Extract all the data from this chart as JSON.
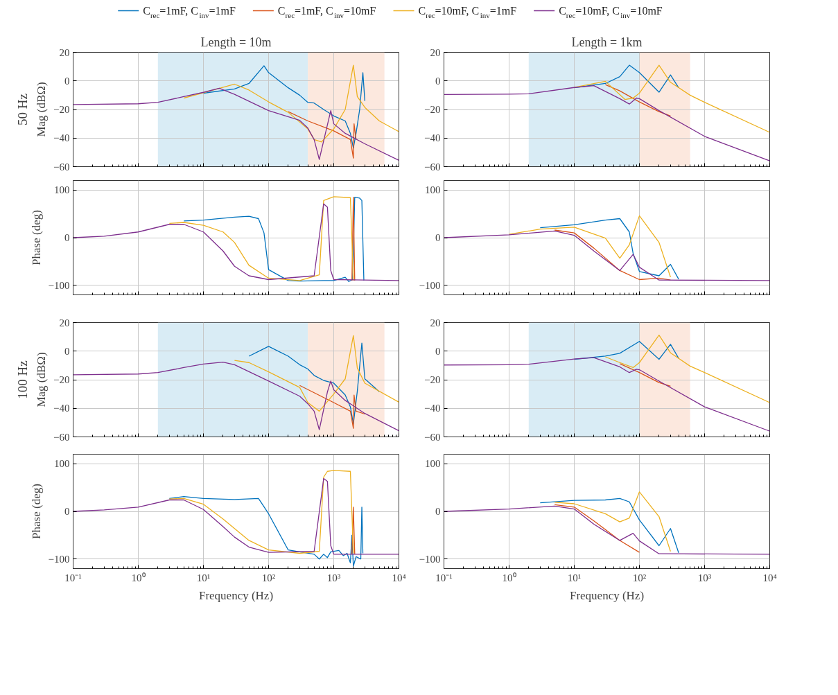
{
  "chart_data": [
    {
      "type": "line",
      "title": "Length = 10m",
      "ylabel": "Mag (dBΩ)",
      "annotations": [
        "50 Hz"
      ],
      "log": "x",
      "grid": true,
      "legend": "top",
      "tick_labels": "y",
      "xlim": [
        0.1,
        10000
      ],
      "xticks": [
        {
          "value": 0.1,
          "label": null
        },
        {
          "value": 1,
          "label": null
        },
        {
          "value": 10,
          "label": null
        },
        {
          "value": 100,
          "label": null
        },
        {
          "value": 1000,
          "label": null
        },
        {
          "value": 10000,
          "label": null
        }
      ],
      "ylim": [
        -60,
        20
      ],
      "yticks": [
        {
          "value": -60,
          "label": "−60"
        },
        {
          "value": -40,
          "label": "−40"
        },
        {
          "value": -20,
          "label": "−20"
        },
        0,
        20
      ],
      "bands": [
        {
          "axis": "x",
          "from": 2,
          "to": 400,
          "color": "#d9ecf5"
        },
        {
          "axis": "x",
          "from": 400,
          "to": 6000,
          "color": "#fce8de"
        }
      ],
      "series": [
        {
          "name": "C$_{rec}$=1mF, C$_{inv}$=1mF",
          "color": "#0072bd",
          "x": [
            10,
            30,
            50,
            85,
            100,
            200,
            300,
            400,
            500,
            700,
            1000,
            1500,
            1800,
            2000,
            2200,
            2500,
            2800,
            3000
          ],
          "values": [
            -8.6,
            -5.6,
            -1.8,
            10.6,
            5.8,
            -4.8,
            -10,
            -15,
            -15.5,
            -20,
            -24.5,
            -28,
            -36.7,
            -47,
            -36.7,
            -20,
            5.8,
            -14
          ]
        },
        {
          "name": "C$_{rec}$=1mF, C$_{inv}$=10mF",
          "color": "#d95319",
          "x": [
            200,
            400,
            1000,
            1800,
            2000,
            2050,
            2200
          ],
          "values": [
            -21.5,
            -28,
            -35,
            -41,
            -54,
            -30,
            -41
          ]
        },
        {
          "name": "C$_{rec}$=10mF, C$_{inv}$=1mF",
          "color": "#edb120",
          "x": [
            5,
            10,
            30,
            50,
            100,
            200,
            400,
            500,
            650,
            1000,
            1500,
            2000,
            2300,
            3000,
            5000,
            10000
          ],
          "values": [
            -12,
            -8.3,
            -2.3,
            -6.4,
            -14.7,
            -22,
            -33.6,
            -41,
            -42.7,
            -33.6,
            -20,
            11,
            -11,
            -18.5,
            -28,
            -35.5
          ]
        },
        {
          "name": "C$_{rec}$=10mF, C$_{inv}$=10mF",
          "color": "#7e2f8e",
          "x": [
            0.1,
            1,
            2,
            5,
            10,
            17.5,
            30,
            100,
            300,
            400,
            500,
            600,
            900,
            1000,
            1500,
            3000,
            10000
          ],
          "values": [
            -16.5,
            -16,
            -15,
            -11,
            -8,
            -5.2,
            -9.4,
            -20.8,
            -27.6,
            -33,
            -41,
            -55,
            -20.8,
            -30,
            -36.7,
            -44,
            -55.6
          ]
        }
      ]
    },
    {
      "type": "line",
      "title": "Length = 1km",
      "log": "x",
      "grid": true,
      "tick_labels": "y",
      "xlim": [
        0.1,
        10000
      ],
      "xticks": [
        {
          "value": 0.1,
          "label": null
        },
        {
          "value": 1,
          "label": null
        },
        {
          "value": 10,
          "label": null
        },
        {
          "value": 100,
          "label": null
        },
        {
          "value": 1000,
          "label": null
        },
        {
          "value": 10000,
          "label": null
        }
      ],
      "ylim": [
        -60,
        20
      ],
      "yticks": [
        {
          "value": -60,
          "label": "−60"
        },
        {
          "value": -40,
          "label": "−40"
        },
        {
          "value": -20,
          "label": "−20"
        },
        0,
        20
      ],
      "bands": [
        {
          "axis": "x",
          "from": 2,
          "to": 100,
          "color": "#d9ecf5"
        },
        {
          "axis": "x",
          "from": 100,
          "to": 600,
          "color": "#fce8de"
        }
      ],
      "series": [
        {
          "color": "#0072bd",
          "x": [
            10,
            30,
            50,
            70,
            100,
            200,
            300,
            400
          ],
          "values": [
            -4.8,
            -1.8,
            3,
            11,
            5.8,
            -7.9,
            4.2,
            -4.8
          ]
        },
        {
          "color": "#d95319",
          "x": [
            30,
            50,
            100,
            200,
            300
          ],
          "values": [
            -2.6,
            -7,
            -14.7,
            -21.5,
            -24.5
          ]
        },
        {
          "color": "#edb120",
          "x": [
            10,
            30,
            60,
            80,
            100,
            200,
            300,
            600,
            1000,
            10000
          ],
          "values": [
            -4.5,
            -0.3,
            -13,
            -12,
            -8.6,
            11,
            -1,
            -10,
            -15,
            -36
          ]
        },
        {
          "color": "#7e2f8e",
          "x": [
            0.1,
            1,
            2,
            10,
            20,
            50,
            70,
            90,
            100,
            200,
            1000,
            10000
          ],
          "values": [
            -9.5,
            -9.3,
            -9,
            -4.6,
            -3.3,
            -12.4,
            -16.2,
            -12,
            -12.4,
            -20.8,
            -38.8,
            -55.9
          ]
        }
      ]
    },
    {
      "type": "line",
      "ylabel": "Phase (deg)",
      "log": "x",
      "grid": true,
      "tick_labels": "y",
      "xlim": [
        0.1,
        10000
      ],
      "xticks": [
        {
          "value": 0.1,
          "label": null
        },
        {
          "value": 1,
          "label": null
        },
        {
          "value": 10,
          "label": null
        },
        {
          "value": 100,
          "label": null
        },
        {
          "value": 1000,
          "label": null
        },
        {
          "value": 10000,
          "label": null
        }
      ],
      "ylim": [
        -120,
        120
      ],
      "yticks": [
        {
          "value": -100,
          "label": "−100"
        },
        0,
        100
      ],
      "series": [
        {
          "color": "#0072bd",
          "x": [
            5,
            10,
            30,
            50,
            70,
            85,
            100,
            200,
            300,
            700,
            1000,
            1500,
            1700,
            1950,
            2100,
            2500,
            2700,
            2900
          ],
          "values": [
            35,
            37,
            43,
            45,
            40,
            10,
            -67,
            -90,
            -91,
            -90,
            -90,
            -83,
            -92,
            -88,
            85,
            83,
            78,
            -90
          ]
        },
        {
          "color": "#d95319",
          "x": [
            1900,
            2000,
            2100
          ],
          "values": [
            -90,
            85,
            -90
          ]
        },
        {
          "color": "#edb120",
          "x": [
            3,
            5,
            10,
            20,
            30,
            50,
            100,
            300,
            600,
            700,
            1000,
            1800,
            2000
          ],
          "values": [
            30,
            32,
            26,
            12,
            -10,
            -58,
            -85,
            -90,
            -78,
            78,
            86,
            84,
            -90
          ]
        },
        {
          "color": "#7e2f8e",
          "x": [
            0.1,
            0.3,
            1,
            3,
            5,
            10,
            20,
            30,
            50,
            100,
            500,
            700,
            800,
            900,
            1000,
            10000
          ],
          "values": [
            0,
            3,
            12,
            28,
            28,
            12,
            -28,
            -60,
            -80,
            -88,
            -80,
            71,
            64,
            -69,
            -88,
            -90
          ]
        }
      ]
    },
    {
      "type": "line",
      "log": "x",
      "grid": true,
      "tick_labels": "y",
      "xlim": [
        0.1,
        10000
      ],
      "xticks": [
        {
          "value": 0.1,
          "label": null
        },
        {
          "value": 1,
          "label": null
        },
        {
          "value": 10,
          "label": null
        },
        {
          "value": 100,
          "label": null
        },
        {
          "value": 1000,
          "label": null
        },
        {
          "value": 10000,
          "label": null
        }
      ],
      "ylim": [
        -120,
        120
      ],
      "yticks": [
        {
          "value": -100,
          "label": "−100"
        },
        0,
        100
      ],
      "series": [
        {
          "color": "#0072bd",
          "x": [
            3,
            10,
            30,
            50,
            70,
            80,
            100,
            200,
            300,
            400
          ],
          "values": [
            21,
            27,
            37,
            40,
            12,
            -33,
            -71,
            -80,
            -56,
            -87
          ]
        },
        {
          "color": "#d95319",
          "x": [
            5,
            10,
            20,
            50,
            100,
            200,
            300
          ],
          "values": [
            16,
            10,
            -22,
            -69,
            -88,
            -85,
            -89
          ]
        },
        {
          "color": "#edb120",
          "x": [
            1,
            3,
            10,
            30,
            50,
            70,
            100,
            200,
            300
          ],
          "values": [
            7,
            18,
            22,
            -1,
            -43,
            -15,
            46,
            -10,
            -83
          ]
        },
        {
          "color": "#7e2f8e",
          "x": [
            0.1,
            1,
            5,
            10,
            20,
            50,
            80,
            100,
            200,
            10000
          ],
          "values": [
            0,
            6,
            14,
            5,
            -28,
            -69,
            -35,
            -62,
            -89,
            -90
          ]
        }
      ]
    },
    {
      "type": "line",
      "ylabel": "Mag (dBΩ)",
      "annotations": [
        "100 Hz"
      ],
      "log": "x",
      "grid": true,
      "tick_labels": "y",
      "xlim": [
        0.1,
        10000
      ],
      "xticks": [
        {
          "value": 0.1,
          "label": null
        },
        {
          "value": 1,
          "label": null
        },
        {
          "value": 10,
          "label": null
        },
        {
          "value": 100,
          "label": null
        },
        {
          "value": 1000,
          "label": null
        },
        {
          "value": 10000,
          "label": null
        }
      ],
      "ylim": [
        -60,
        20
      ],
      "yticks": [
        {
          "value": -60,
          "label": "−60"
        },
        {
          "value": -40,
          "label": "−40"
        },
        {
          "value": -20,
          "label": "−20"
        },
        0,
        20
      ],
      "bands": [
        {
          "axis": "x",
          "from": 2,
          "to": 400,
          "color": "#d9ecf5"
        },
        {
          "axis": "x",
          "from": 400,
          "to": 6000,
          "color": "#fce8de"
        }
      ],
      "series": [
        {
          "color": "#0072bd",
          "x": [
            50,
            100,
            200,
            300,
            400,
            500,
            700,
            1000,
            1500,
            1800,
            2000,
            2300,
            2700,
            3000,
            5000
          ],
          "values": [
            -3.5,
            3.3,
            -3.5,
            -9.5,
            -12.5,
            -17,
            -20.5,
            -22.4,
            -30.7,
            -39,
            -51,
            -28,
            5.6,
            -19.4,
            -28.4
          ]
        },
        {
          "color": "#d95319",
          "x": [
            300,
            1000,
            1800,
            2000,
            2050,
            2200,
            3000
          ],
          "values": [
            -24,
            -36,
            -42,
            -54,
            -30.7,
            -42,
            -44
          ]
        },
        {
          "color": "#edb120",
          "x": [
            30,
            50,
            100,
            300,
            400,
            600,
            1000,
            1500,
            2000,
            2300,
            3000,
            10000
          ],
          "values": [
            -6.5,
            -8,
            -14.5,
            -25.4,
            -36,
            -42,
            -30,
            -19.4,
            10.9,
            -11.8,
            -22.4,
            -35.7
          ]
        },
        {
          "color": "#7e2f8e",
          "x": [
            0.1,
            1,
            2,
            5,
            10,
            20,
            30,
            100,
            300,
            400,
            500,
            600,
            800,
            900,
            1000,
            1500,
            3000,
            10000
          ],
          "values": [
            -16.5,
            -16,
            -15,
            -11.5,
            -9,
            -7.7,
            -9.5,
            -20.9,
            -31.5,
            -36.8,
            -42,
            -55,
            -28.5,
            -20.9,
            -27,
            -34.5,
            -43.6,
            -55.7
          ]
        }
      ]
    },
    {
      "type": "line",
      "log": "x",
      "grid": true,
      "tick_labels": "y",
      "xlim": [
        0.1,
        10000
      ],
      "xticks": [
        {
          "value": 0.1,
          "label": null
        },
        {
          "value": 1,
          "label": null
        },
        {
          "value": 10,
          "label": null
        },
        {
          "value": 100,
          "label": null
        },
        {
          "value": 1000,
          "label": null
        },
        {
          "value": 10000,
          "label": null
        }
      ],
      "ylim": [
        -60,
        20
      ],
      "yticks": [
        {
          "value": -60,
          "label": "−60"
        },
        {
          "value": -40,
          "label": "−40"
        },
        {
          "value": -20,
          "label": "−20"
        },
        0,
        20
      ],
      "bands": [
        {
          "axis": "x",
          "from": 2,
          "to": 100,
          "color": "#d9ecf5"
        },
        {
          "axis": "x",
          "from": 100,
          "to": 600,
          "color": "#fce8de"
        }
      ],
      "series": [
        {
          "color": "#0072bd",
          "x": [
            10,
            30,
            50,
            100,
            200,
            300,
            400
          ],
          "values": [
            -5.7,
            -3.5,
            -1.5,
            6.8,
            -5.7,
            4.8,
            -5
          ]
        },
        {
          "color": "#d95319",
          "x": [
            50,
            100,
            200,
            300
          ],
          "values": [
            -8.8,
            -15,
            -22,
            -24.5
          ]
        },
        {
          "color": "#edb120",
          "x": [
            30,
            50,
            80,
            100,
            200,
            300,
            600,
            1000,
            10000
          ],
          "values": [
            -4,
            -8,
            -11.5,
            -8,
            11.2,
            -1.2,
            -10.5,
            -15,
            -36
          ]
        },
        {
          "color": "#7e2f8e",
          "x": [
            0.1,
            1,
            2,
            10,
            20,
            50,
            70,
            90,
            100,
            200,
            1000,
            10000
          ],
          "values": [
            -9.7,
            -9.5,
            -9.2,
            -5.5,
            -4.5,
            -11,
            -15,
            -12.7,
            -13,
            -21,
            -39,
            -56
          ]
        }
      ]
    },
    {
      "type": "line",
      "ylabel": "Phase (deg)",
      "xlabel": "Frequency (Hz)",
      "log": "x",
      "grid": true,
      "xlim": [
        0.1,
        10000
      ],
      "xticks": [
        {
          "value": 0.1,
          "label": "10⁻¹"
        },
        {
          "value": 1,
          "label": "10⁰"
        },
        {
          "value": 10,
          "label": "10¹"
        },
        {
          "value": 100,
          "label": "10²"
        },
        {
          "value": 1000,
          "label": "10³"
        },
        {
          "value": 10000,
          "label": "10⁴"
        }
      ],
      "ylim": [
        -120,
        120
      ],
      "yticks": [
        {
          "value": -100,
          "label": "−100"
        },
        0,
        100
      ],
      "series": [
        {
          "color": "#0072bd",
          "x": [
            3,
            5,
            10,
            30,
            70,
            100,
            200,
            500,
            600,
            700,
            800,
            900,
            1200,
            1400,
            1600,
            1800,
            1900,
            2000,
            2200,
            2600,
            2700,
            2800
          ],
          "values": [
            27,
            31,
            27,
            25,
            27,
            -5,
            -81,
            -90,
            -100,
            -90,
            -97,
            -85,
            -82,
            -93,
            -88,
            -108,
            -50,
            -115,
            -95,
            -100,
            9,
            -88
          ]
        },
        {
          "color": "#d95319",
          "x": [
            1900,
            2000,
            2100
          ],
          "values": [
            -90,
            9,
            -90
          ]
        },
        {
          "color": "#edb120",
          "x": [
            3,
            5,
            10,
            20,
            30,
            50,
            100,
            300,
            600,
            700,
            800,
            1000,
            1800,
            2000
          ],
          "values": [
            26,
            27,
            15,
            -16,
            -36,
            -61,
            -81,
            -88,
            -84,
            72,
            84,
            86,
            84,
            -88
          ]
        },
        {
          "color": "#7e2f8e",
          "x": [
            0.1,
            0.3,
            1,
            3,
            5,
            10,
            20,
            30,
            50,
            100,
            500,
            700,
            800,
            900,
            1000,
            10000
          ],
          "values": [
            0,
            3,
            9,
            24,
            24,
            4,
            -32,
            -54,
            -75,
            -86,
            -84,
            69,
            63,
            -72,
            -90,
            -90
          ]
        }
      ]
    },
    {
      "type": "line",
      "xlabel": "Frequency (Hz)",
      "log": "x",
      "grid": true,
      "xlim": [
        0.1,
        10000
      ],
      "xticks": [
        {
          "value": 0.1,
          "label": "10⁻¹"
        },
        {
          "value": 1,
          "label": "10⁰"
        },
        {
          "value": 10,
          "label": "10¹"
        },
        {
          "value": 100,
          "label": "10²"
        },
        {
          "value": 1000,
          "label": "10³"
        },
        {
          "value": 10000,
          "label": "10⁴"
        }
      ],
      "ylim": [
        -120,
        120
      ],
      "yticks": [
        {
          "value": -100,
          "label": "−100"
        },
        0,
        100
      ],
      "series": [
        {
          "color": "#0072bd",
          "x": [
            3,
            10,
            30,
            50,
            70,
            100,
            200,
            300,
            400
          ],
          "values": [
            18,
            23,
            24,
            27,
            20,
            -18,
            -72,
            -36,
            -87
          ]
        },
        {
          "color": "#d95319",
          "x": [
            5,
            10,
            20,
            50,
            100
          ],
          "values": [
            14,
            9,
            -20,
            -61,
            -86
          ]
        },
        {
          "color": "#edb120",
          "x": [
            5,
            10,
            30,
            50,
            70,
            100,
            200,
            300
          ],
          "values": [
            19,
            16,
            -5,
            -22,
            -14,
            41,
            -11,
            -84
          ]
        },
        {
          "color": "#7e2f8e",
          "x": [
            0.1,
            1,
            5,
            10,
            20,
            50,
            80,
            100,
            200,
            10000
          ],
          "values": [
            0,
            5,
            11,
            5,
            -27,
            -61,
            -46,
            -62,
            -89,
            -90
          ]
        }
      ]
    }
  ]
}
